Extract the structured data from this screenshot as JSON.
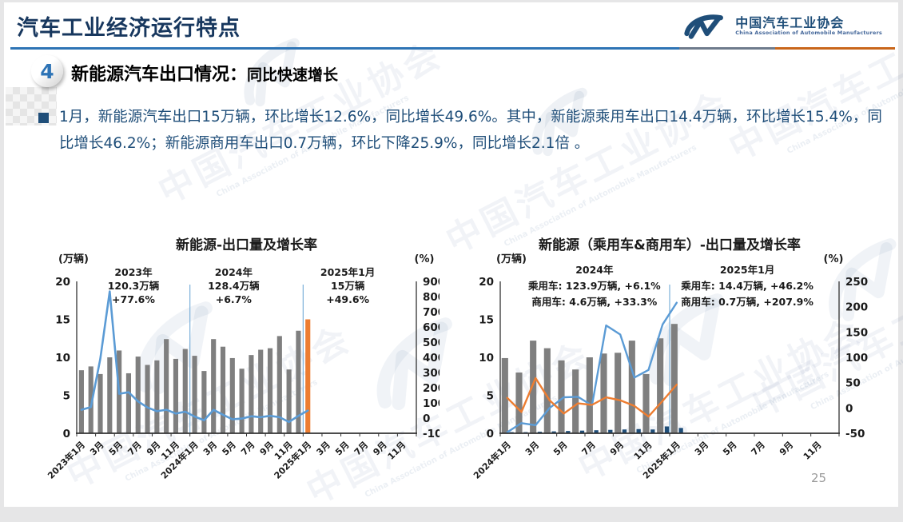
{
  "page": {
    "number": "25"
  },
  "header": {
    "title": "汽车工业经济运行特点"
  },
  "logo": {
    "cn": "中国汽车工业协会",
    "en": "China Association of Automobile Manufacturers"
  },
  "section": {
    "badge": "4",
    "heading": "新能源汽车出口情况：",
    "subheading": "同比快速增长"
  },
  "body": {
    "text": "1月，新能源汽车出口15万辆，环比增长12.6%，同比增长49.6%。其中，新能源乘用车出口14.4万辆，环比增长15.4%，同比增长46.2%；新能源商用车出口0.7万辆，环比下降25.9%，同比增长2.1倍 。"
  },
  "watermark": {
    "cn": "中国汽车工业协会",
    "en": "China Association of Automobile Manufacturers"
  },
  "colors": {
    "accent_blue": "#2E74B5",
    "text_blue": "#1F4E79",
    "title_navy": "#17375E",
    "bar_gray": "#7F7F7F",
    "bar_navy": "#1F4E79",
    "bar_orange": "#ED7D31",
    "line_blue": "#5B9BD5",
    "line_orange": "#ED7D31",
    "divider_blue": "#7CB0D9"
  },
  "chart_data": [
    {
      "type": "bar",
      "title": "新能源-出口量及增长率",
      "ylabel_left": "(万辆)",
      "ylabel_right": "(%)",
      "ylim_left": [
        0,
        20
      ],
      "yticks_left": [
        0,
        5,
        10,
        15,
        20
      ],
      "ylim_right": [
        -100,
        900
      ],
      "yticks_right": [
        -100,
        0,
        100,
        200,
        300,
        400,
        500,
        600,
        700,
        800,
        900
      ],
      "n_slots": 36,
      "x_tick_labels": [
        "2023年1月",
        "3月",
        "5月",
        "7月",
        "9月",
        "11月",
        "2024年1月",
        "3月",
        "5月",
        "7月",
        "9月",
        "11月",
        "2025年1月",
        "3月",
        "5月",
        "7月",
        "9月",
        "11月"
      ],
      "bar_series": [
        {
          "name": "新能源汽车出口量(万辆)",
          "color": "#7F7F7F",
          "highlight_last": true,
          "highlight_color": "#ED7D31",
          "values": [
            8.3,
            8.8,
            7.8,
            10.0,
            10.9,
            7.9,
            10.1,
            9.0,
            9.6,
            12.4,
            9.8,
            11.1,
            10.2,
            8.2,
            12.4,
            11.4,
            9.9,
            8.5,
            10.3,
            11.0,
            11.2,
            12.8,
            8.4,
            13.5,
            15.0
          ]
        }
      ],
      "line_series": [
        {
          "name": "出口同比增长率(%)",
          "color": "#5B9BD5",
          "axis": "right",
          "values": [
            55,
            72,
            390,
            834,
            160,
            170,
            110,
            70,
            45,
            55,
            30,
            42,
            10,
            -15,
            54,
            22,
            -8,
            -3,
            12,
            6,
            15,
            6,
            -26,
            15,
            49.6
          ]
        }
      ],
      "annotations": [
        {
          "x_frac": 0.167,
          "lines": [
            "2023年",
            "120.3万辆",
            "+77.6%"
          ]
        },
        {
          "x_frac": 0.462,
          "lines": [
            "2024年",
            "128.4万辆",
            "+6.7%"
          ]
        },
        {
          "x_frac": 0.798,
          "lines": [
            "2025年1月",
            "15万辆",
            "+49.6%"
          ]
        }
      ],
      "dividers": [
        12,
        24
      ]
    },
    {
      "type": "bar",
      "title": "新能源（乘用车&商用车）-出口量及增长率",
      "ylabel_left": "(万辆)",
      "ylabel_right": "(%)",
      "ylim_left": [
        0,
        20
      ],
      "yticks_left": [
        0,
        5,
        10,
        15,
        20
      ],
      "ylim_right": [
        -50,
        250
      ],
      "yticks_right": [
        -50,
        0,
        50,
        100,
        150,
        200,
        250
      ],
      "n_slots": 24,
      "x_tick_labels": [
        "2024年1月",
        "3月",
        "5月",
        "7月",
        "9月",
        "11月",
        "2025年1月",
        "3月",
        "5月",
        "7月",
        "9月",
        "11月"
      ],
      "bar_series": [
        {
          "name": "乘用车出口量(万辆)",
          "color": "#7F7F7F",
          "values": [
            9.9,
            8.0,
            12.2,
            11.2,
            9.6,
            8.4,
            10.0,
            10.5,
            10.6,
            12.2,
            7.8,
            12.5,
            14.4
          ]
        },
        {
          "name": "商用车出口量(万辆)",
          "color": "#1F4E79",
          "values": [
            0.15,
            0.15,
            0.2,
            0.25,
            0.3,
            0.35,
            0.4,
            0.45,
            0.5,
            0.55,
            0.5,
            0.9,
            0.7
          ]
        }
      ],
      "line_series": [
        {
          "name": "商用车同比增长率(%)",
          "color": "#5B9BD5",
          "axis": "right",
          "values": [
            -48,
            -30,
            -34,
            0,
            21,
            22,
            5,
            163,
            145,
            60,
            75,
            165,
            207.9
          ]
        },
        {
          "name": "乘用车同比增长率(%)",
          "color": "#ED7D31",
          "axis": "right",
          "values": [
            20,
            -8,
            59,
            15,
            -11,
            9,
            6,
            21,
            15,
            4,
            -17,
            14,
            46.2
          ]
        }
      ],
      "annotations": [
        {
          "x_frac": 0.278,
          "lines": [
            "2024年",
            "乘用车: 123.9万辆, +6.1%",
            "商用车: 4.6万辆, +33.3%"
          ]
        },
        {
          "x_frac": 0.729,
          "lines": [
            "2025年1月",
            "乘用车: 14.4万辆, +46.2%",
            "商用车: 0.7万辆, +207.9%"
          ]
        }
      ],
      "dividers": [
        12
      ]
    }
  ]
}
